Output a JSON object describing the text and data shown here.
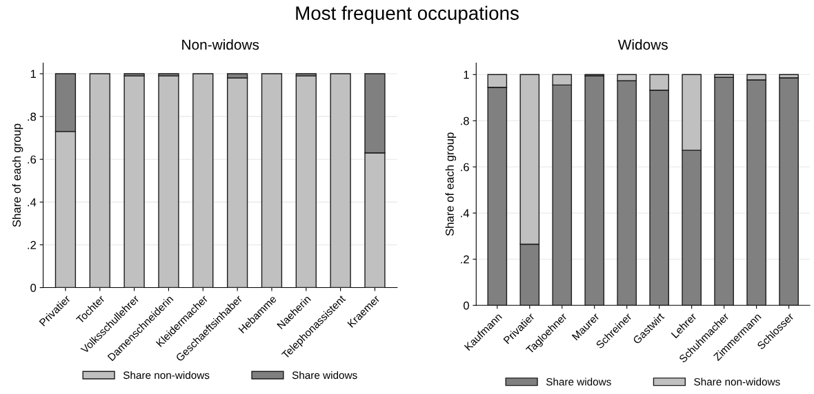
{
  "chart_data": [
    {
      "type": "bar",
      "title": "Most frequent occupations",
      "subtitle": "Non-widows",
      "ylabel": "Share of each group",
      "stacked": true,
      "categories": [
        "Privatier",
        "Tochter",
        "Volksschullehrer",
        "Damenschneiderin",
        "Kleidermacher",
        "Geschaeftsinhaber",
        "Hebamme",
        "Naeherin",
        "Telephonassistent",
        "Kraemer"
      ],
      "series": [
        {
          "name": "Share non-widows",
          "color": "#c0c0c0",
          "values": [
            0.73,
            1.0,
            0.99,
            0.99,
            1.0,
            0.98,
            1.0,
            0.99,
            1.0,
            0.63
          ]
        },
        {
          "name": "Share widows",
          "color": "#808080",
          "values": [
            0.27,
            0.0,
            0.01,
            0.01,
            0.0,
            0.02,
            0.0,
            0.01,
            0.0,
            0.37
          ]
        }
      ],
      "ylim": [
        0,
        1.05
      ],
      "yticks": [
        0,
        {
          "value": 0.2,
          "label": ".2"
        },
        {
          "value": 0.4,
          "label": ".4"
        },
        {
          "value": 0.6,
          "label": ".6"
        },
        {
          "value": 0.8,
          "label": ".8"
        },
        1
      ],
      "grid": "y",
      "legend": "bottom"
    },
    {
      "type": "bar",
      "subtitle": "Widows",
      "ylabel": "Share of each group",
      "stacked": true,
      "categories": [
        "Kaufmann",
        "Privatier",
        "Tagloehner",
        "Maurer",
        "Schreiner",
        "Gastwirt",
        "Lehrer",
        "Schuhmacher",
        "Zimmermann",
        "Schlosser"
      ],
      "series": [
        {
          "name": "Share widows",
          "color": "#808080",
          "values": [
            0.945,
            0.265,
            0.955,
            0.995,
            0.973,
            0.932,
            0.672,
            0.988,
            0.977,
            0.986
          ]
        },
        {
          "name": "Share non-widows",
          "color": "#c0c0c0",
          "values": [
            0.055,
            0.735,
            0.045,
            0.005,
            0.027,
            0.068,
            0.328,
            0.012,
            0.023,
            0.014
          ]
        }
      ],
      "ylim": [
        0,
        1.05
      ],
      "yticks": [
        0,
        {
          "value": 0.2,
          "label": ".2"
        },
        {
          "value": 0.4,
          "label": ".4"
        },
        {
          "value": 0.6,
          "label": ".6"
        },
        {
          "value": 0.8,
          "label": ".8"
        },
        1
      ],
      "grid": "y",
      "legend": "bottom"
    }
  ]
}
